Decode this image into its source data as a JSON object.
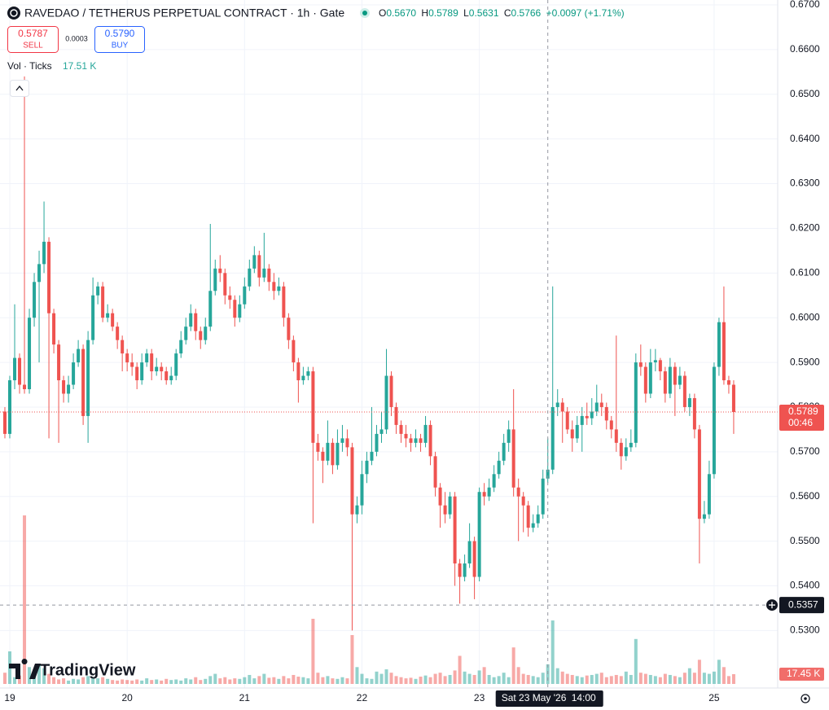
{
  "chart_data": {
    "type": "candlestick",
    "title": "RAVEDAO / TETHERUS PERPETUAL CONTRACT · 1h · Gate",
    "header": {
      "o_label": "O",
      "o": "0.5670",
      "h_label": "H",
      "h": "0.5789",
      "l_label": "L",
      "l": "0.5631",
      "c_label": "C",
      "c": "0.5766",
      "change": "+0.0097 (+1.71%)"
    },
    "sell": {
      "price": "0.5787",
      "label": "SELL"
    },
    "spread": "0.0003",
    "buy": {
      "price": "0.5790",
      "label": "BUY"
    },
    "volume_legend": {
      "label": "Vol · Ticks",
      "value": "17.51 K"
    },
    "logo": "TradingView",
    "up_color": "#26a69a",
    "down_color": "#ef5350",
    "open": [
      0.579,
      0.574,
      0.586,
      0.591,
      0.585,
      0.584,
      0.6,
      0.608,
      0.612,
      0.617,
      0.601,
      0.594,
      0.586,
      0.583,
      0.585,
      0.59,
      0.593,
      0.578,
      0.595,
      0.605,
      0.607,
      0.6,
      0.601,
      0.598,
      0.595,
      0.592,
      0.59,
      0.589,
      0.586,
      0.59,
      0.592,
      0.588,
      0.589,
      0.588,
      0.586,
      0.587,
      0.592,
      0.595,
      0.598,
      0.601,
      0.597,
      0.595,
      0.598,
      0.606,
      0.611,
      0.61,
      0.605,
      0.604,
      0.6,
      0.603,
      0.607,
      0.611,
      0.614,
      0.609,
      0.611,
      0.608,
      0.606,
      0.607,
      0.6,
      0.595,
      0.59,
      0.586,
      0.587,
      0.588,
      0.572,
      0.57,
      0.568,
      0.572,
      0.567,
      0.572,
      0.573,
      0.571,
      0.556,
      0.558,
      0.565,
      0.568,
      0.57,
      0.574,
      0.575,
      0.587,
      0.58,
      0.576,
      0.574,
      0.573,
      0.572,
      0.573,
      0.572,
      0.576,
      0.569,
      0.562,
      0.558,
      0.556,
      0.56,
      0.545,
      0.542,
      0.545,
      0.55,
      0.542,
      0.561,
      0.56,
      0.562,
      0.565,
      0.568,
      0.572,
      0.575,
      0.562,
      0.56,
      0.558,
      0.553,
      0.554,
      0.556,
      0.564,
      0.566,
      0.58,
      0.581,
      0.579,
      0.575,
      0.573,
      0.576,
      0.578,
      0.5775,
      0.579,
      0.581,
      0.58,
      0.577,
      0.575,
      0.572,
      0.569,
      0.571,
      0.572,
      0.59,
      0.589,
      0.583,
      0.59,
      0.5905,
      0.588,
      0.583,
      0.589,
      0.585,
      0.587,
      0.58,
      0.582,
      0.575,
      0.555,
      0.556,
      0.565,
      0.589,
      0.599,
      0.586,
      0.585
    ],
    "high": [
      0.58,
      0.587,
      0.603,
      0.592,
      0.654,
      0.602,
      0.61,
      0.615,
      0.626,
      0.618,
      0.602,
      0.595,
      0.587,
      0.587,
      0.592,
      0.595,
      0.594,
      0.597,
      0.609,
      0.608,
      0.608,
      0.603,
      0.602,
      0.599,
      0.596,
      0.593,
      0.592,
      0.59,
      0.592,
      0.593,
      0.593,
      0.591,
      0.59,
      0.589,
      0.589,
      0.593,
      0.597,
      0.6,
      0.603,
      0.602,
      0.598,
      0.6,
      0.621,
      0.613,
      0.614,
      0.611,
      0.607,
      0.605,
      0.605,
      0.609,
      0.613,
      0.616,
      0.615,
      0.619,
      0.612,
      0.61,
      0.609,
      0.608,
      0.601,
      0.596,
      0.591,
      0.589,
      0.589,
      0.589,
      0.574,
      0.571,
      0.577,
      0.573,
      0.575,
      0.576,
      0.575,
      0.572,
      0.56,
      0.568,
      0.57,
      0.58,
      0.576,
      0.579,
      0.593,
      0.588,
      0.581,
      0.577,
      0.576,
      0.574,
      0.575,
      0.574,
      0.578,
      0.577,
      0.57,
      0.563,
      0.561,
      0.561,
      0.561,
      0.546,
      0.547,
      0.554,
      0.551,
      0.562,
      0.563,
      0.564,
      0.567,
      0.57,
      0.574,
      0.577,
      0.584,
      0.564,
      0.561,
      0.559,
      0.556,
      0.558,
      0.566,
      0.573,
      0.607,
      0.584,
      0.582,
      0.58,
      0.577,
      0.578,
      0.58,
      0.581,
      0.582,
      0.585,
      0.583,
      0.581,
      0.578,
      0.596,
      0.573,
      0.573,
      0.575,
      0.592,
      0.594,
      0.59,
      0.593,
      0.593,
      0.591,
      0.589,
      0.591,
      0.59,
      0.589,
      0.588,
      0.583,
      0.583,
      0.576,
      0.559,
      0.568,
      0.59,
      0.6,
      0.607,
      0.587,
      0.586
    ],
    "low": [
      0.573,
      0.573,
      0.584,
      0.583,
      0.583,
      0.583,
      0.598,
      0.59,
      0.61,
      0.573,
      0.592,
      0.572,
      0.581,
      0.581,
      0.584,
      0.589,
      0.576,
      0.572,
      0.594,
      0.603,
      0.599,
      0.599,
      0.597,
      0.593,
      0.588,
      0.588,
      0.587,
      0.584,
      0.585,
      0.589,
      0.586,
      0.587,
      0.586,
      0.585,
      0.585,
      0.586,
      0.591,
      0.594,
      0.597,
      0.595,
      0.593,
      0.594,
      0.597,
      0.605,
      0.608,
      0.603,
      0.602,
      0.598,
      0.599,
      0.602,
      0.606,
      0.61,
      0.607,
      0.608,
      0.606,
      0.604,
      0.605,
      0.598,
      0.593,
      0.588,
      0.581,
      0.585,
      0.586,
      0.554,
      0.568,
      0.563,
      0.567,
      0.565,
      0.566,
      0.57,
      0.569,
      0.53,
      0.554,
      0.556,
      0.563,
      0.567,
      0.569,
      0.572,
      0.574,
      0.578,
      0.574,
      0.572,
      0.571,
      0.57,
      0.571,
      0.57,
      0.571,
      0.567,
      0.56,
      0.553,
      0.554,
      0.555,
      0.54,
      0.536,
      0.541,
      0.544,
      0.537,
      0.541,
      0.558,
      0.559,
      0.561,
      0.564,
      0.567,
      0.57,
      0.56,
      0.55,
      0.552,
      0.551,
      0.552,
      0.553,
      0.555,
      0.563,
      0.565,
      0.578,
      0.572,
      0.574,
      0.57,
      0.572,
      0.57,
      0.576,
      0.576,
      0.578,
      0.578,
      0.575,
      0.573,
      0.57,
      0.566,
      0.568,
      0.57,
      0.571,
      0.587,
      0.581,
      0.582,
      0.588,
      0.586,
      0.581,
      0.582,
      0.578,
      0.584,
      0.579,
      0.578,
      0.573,
      0.545,
      0.554,
      0.555,
      0.564,
      0.587,
      0.585,
      0.583,
      0.574
    ],
    "close": [
      0.574,
      0.586,
      0.591,
      0.585,
      0.584,
      0.6,
      0.608,
      0.612,
      0.617,
      0.601,
      0.594,
      0.586,
      0.583,
      0.585,
      0.59,
      0.593,
      0.578,
      0.595,
      0.605,
      0.607,
      0.6,
      0.601,
      0.598,
      0.595,
      0.592,
      0.59,
      0.589,
      0.586,
      0.59,
      0.592,
      0.588,
      0.589,
      0.588,
      0.586,
      0.587,
      0.592,
      0.595,
      0.598,
      0.601,
      0.597,
      0.595,
      0.598,
      0.606,
      0.611,
      0.61,
      0.605,
      0.604,
      0.6,
      0.603,
      0.607,
      0.611,
      0.614,
      0.609,
      0.611,
      0.608,
      0.606,
      0.607,
      0.6,
      0.595,
      0.59,
      0.586,
      0.587,
      0.588,
      0.572,
      0.57,
      0.568,
      0.572,
      0.567,
      0.572,
      0.573,
      0.571,
      0.556,
      0.558,
      0.565,
      0.568,
      0.57,
      0.574,
      0.575,
      0.587,
      0.58,
      0.576,
      0.574,
      0.573,
      0.572,
      0.573,
      0.572,
      0.576,
      0.569,
      0.562,
      0.558,
      0.556,
      0.56,
      0.545,
      0.542,
      0.545,
      0.55,
      0.542,
      0.561,
      0.56,
      0.562,
      0.565,
      0.568,
      0.572,
      0.575,
      0.562,
      0.56,
      0.558,
      0.553,
      0.554,
      0.556,
      0.564,
      0.566,
      0.58,
      0.581,
      0.579,
      0.575,
      0.573,
      0.576,
      0.578,
      0.5775,
      0.579,
      0.581,
      0.58,
      0.577,
      0.575,
      0.572,
      0.569,
      0.571,
      0.572,
      0.59,
      0.589,
      0.583,
      0.59,
      0.5905,
      0.588,
      0.583,
      0.589,
      0.585,
      0.587,
      0.58,
      0.582,
      0.575,
      0.555,
      0.556,
      0.565,
      0.589,
      0.599,
      0.586,
      0.585,
      0.5789
    ],
    "volume": [
      20,
      58,
      12,
      15,
      300,
      30,
      18,
      35,
      28,
      18,
      12,
      8,
      10,
      6,
      9,
      8,
      12,
      14,
      10,
      10,
      12,
      9,
      7,
      6,
      8,
      7,
      6,
      8,
      6,
      10,
      7,
      8,
      6,
      9,
      7,
      8,
      6,
      10,
      8,
      12,
      7,
      9,
      14,
      18,
      10,
      12,
      8,
      10,
      9,
      12,
      16,
      10,
      14,
      18,
      11,
      12,
      9,
      14,
      10,
      16,
      13,
      12,
      10,
      116,
      20,
      12,
      14,
      10,
      9,
      12,
      10,
      87,
      30,
      18,
      10,
      9,
      22,
      18,
      26,
      20,
      14,
      12,
      10,
      11,
      9,
      13,
      15,
      12,
      18,
      20,
      14,
      16,
      24,
      50,
      22,
      18,
      16,
      24,
      30,
      16,
      12,
      14,
      20,
      12,
      65,
      30,
      18,
      16,
      14,
      12,
      20,
      35,
      113,
      28,
      22,
      18,
      16,
      14,
      12,
      15,
      16,
      18,
      20,
      12,
      14,
      16,
      14,
      22,
      16,
      80,
      20,
      18,
      16,
      14,
      12,
      18,
      16,
      14,
      12,
      20,
      28,
      20,
      43,
      20,
      18,
      22,
      43,
      30,
      14,
      17.45
    ],
    "xlim": [
      -1,
      158
    ],
    "xticks": [
      {
        "value": 1,
        "label": "19"
      },
      {
        "value": 25,
        "label": "20"
      },
      {
        "value": 49,
        "label": "21"
      },
      {
        "value": 73,
        "label": "22"
      },
      {
        "value": 97,
        "label": "23"
      },
      {
        "value": 145,
        "label": "25"
      }
    ],
    "ylim": [
      0.6711,
      0.5246
    ],
    "yticks": [
      {
        "value": 0.67,
        "label": "0.6700"
      },
      {
        "value": 0.66,
        "label": "0.6600"
      },
      {
        "value": 0.65,
        "label": "0.6500"
      },
      {
        "value": 0.64,
        "label": "0.6400"
      },
      {
        "value": 0.63,
        "label": "0.6300"
      },
      {
        "value": 0.62,
        "label": "0.6200"
      },
      {
        "value": 0.61,
        "label": "0.6100"
      },
      {
        "value": 0.6,
        "label": "0.6000"
      },
      {
        "value": 0.59,
        "label": "0.5900"
      },
      {
        "value": 0.58,
        "label": "0.5800"
      },
      {
        "value": 0.57,
        "label": "0.5700"
      },
      {
        "value": 0.56,
        "label": "0.5600"
      },
      {
        "value": 0.55,
        "label": "0.5500"
      },
      {
        "value": 0.54,
        "label": "0.5400"
      },
      {
        "value": 0.53,
        "label": "0.5300"
      }
    ],
    "grid": true,
    "last_price": {
      "label": "0.5789",
      "countdown": "00:46"
    },
    "last_volume_label": "17.45 K",
    "crosshair": {
      "price": 0.5357,
      "price_label": "0.5357",
      "x": 111,
      "date_label": "Sat 23 May '26",
      "time_label": "14:00"
    }
  }
}
